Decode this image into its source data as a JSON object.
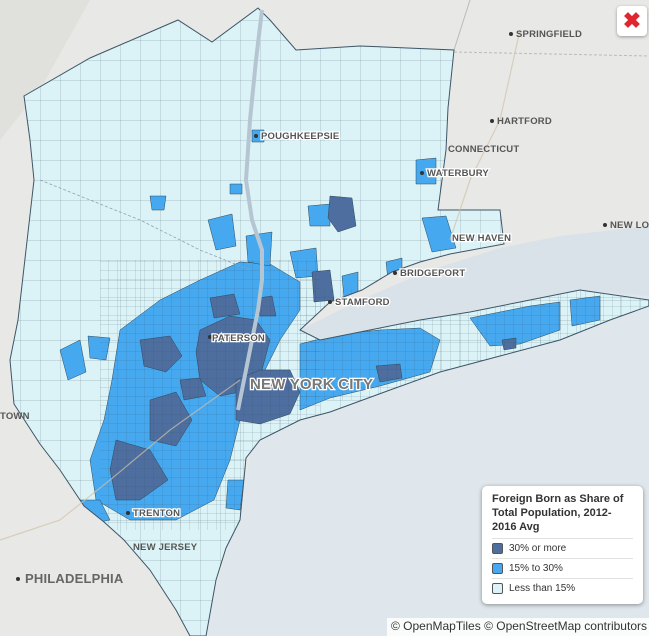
{
  "colors": {
    "land": "#e8e8e6",
    "water": "#dfe7ec",
    "low": "#dbf3f6",
    "mid": "#46a8ef",
    "high": "#4d6e9f",
    "border": "#3d5566",
    "close": "#e0262e"
  },
  "close_button": {
    "icon": "close-icon",
    "glyph": "✖"
  },
  "legend": {
    "title": "Foreign Born as Share of Total Population, 2012-2016 Avg",
    "items": [
      {
        "label": "30% or more",
        "color": "#4d6e9f"
      },
      {
        "label": "15% to 30%",
        "color": "#46a8ef"
      },
      {
        "label": "Less than 15%",
        "color": "#dbf3f6"
      }
    ]
  },
  "cities": {
    "springfield": "SPRINGFIELD",
    "hartford": "HARTFORD",
    "connecticut": "CONNECTICUT",
    "waterbury": "WATERBURY",
    "new_haven": "NEW HAVEN",
    "new_london": "NEW LO",
    "bridgeport": "BRIDGEPORT",
    "stamford": "STAMFORD",
    "poughkeepsie": "POUGHKEEPSIE",
    "paterson": "PATERSON",
    "new_york_city": "NEW YORK CITY",
    "trenton": "TRENTON",
    "new_jersey": "NEW JERSEY",
    "philadelphia": "PHILADELPHIA",
    "town": "TOWN"
  },
  "attribution": "© OpenMapTiles © OpenStreetMap contributors"
}
